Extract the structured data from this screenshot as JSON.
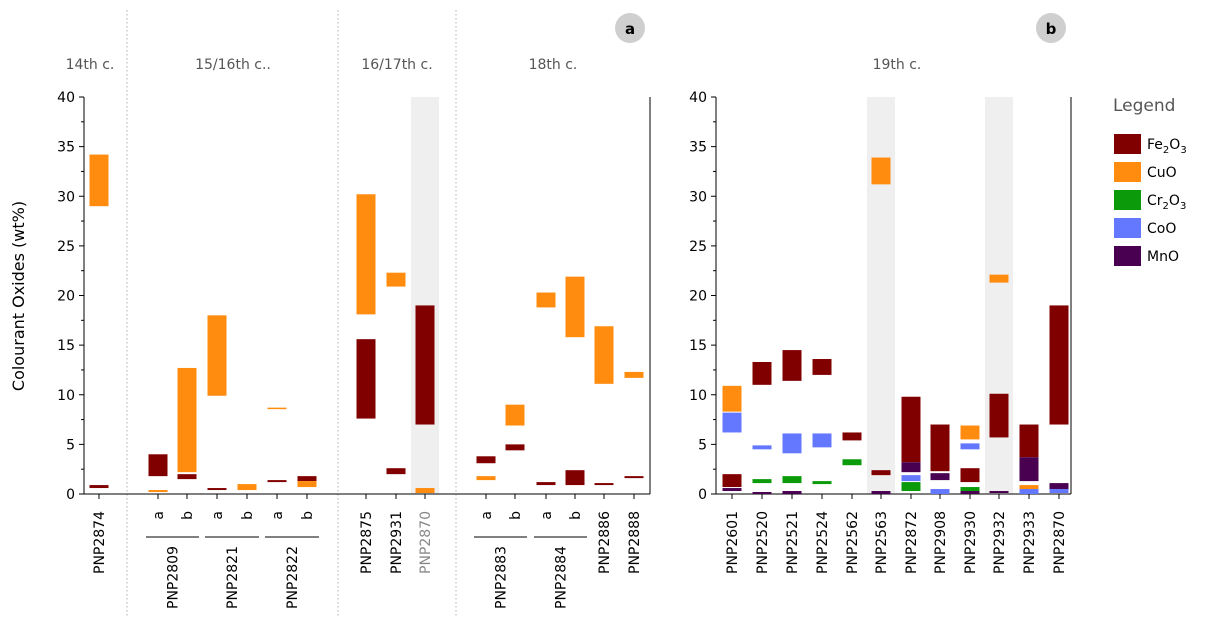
{
  "chart_data": [
    {
      "type": "bar",
      "subtype": "floating-range-bar",
      "panel": "a",
      "ylabel": "Colourant Oxides (wt%)",
      "ylim": [
        0,
        40
      ],
      "yticks": [
        0,
        5,
        10,
        15,
        20,
        25,
        30,
        35,
        40
      ],
      "periods": [
        {
          "label": "14th c.",
          "samples": [
            "PNP2874"
          ]
        },
        {
          "label": "15/16th c..",
          "samples": [
            "PNP2809",
            "PNP2821",
            "PNP2822"
          ]
        },
        {
          "label": "16/17th c.",
          "samples": [
            "PNP2875",
            "PNP2931",
            "PNP2870"
          ]
        },
        {
          "label": "18th c.",
          "samples": [
            "PNP2883",
            "PNP2884",
            "PNP2886",
            "PNP2888"
          ]
        }
      ],
      "slots": [
        {
          "sample": "PNP2874",
          "sub": ""
        },
        {
          "sample": "PNP2809",
          "sub": "a"
        },
        {
          "sample": "PNP2809",
          "sub": "b"
        },
        {
          "sample": "PNP2821",
          "sub": "a"
        },
        {
          "sample": "PNP2821",
          "sub": "b"
        },
        {
          "sample": "PNP2822",
          "sub": "a"
        },
        {
          "sample": "PNP2822",
          "sub": "b"
        },
        {
          "sample": "PNP2875",
          "sub": ""
        },
        {
          "sample": "PNP2931",
          "sub": ""
        },
        {
          "sample": "PNP2870",
          "sub": "",
          "muted": true,
          "highlight": true
        },
        {
          "sample": "PNP2883",
          "sub": "a"
        },
        {
          "sample": "PNP2883",
          "sub": "b"
        },
        {
          "sample": "PNP2884",
          "sub": "a"
        },
        {
          "sample": "PNP2884",
          "sub": "b"
        },
        {
          "sample": "PNP2886",
          "sub": ""
        },
        {
          "sample": "PNP2888",
          "sub": ""
        }
      ],
      "bars": [
        {
          "slot": 0,
          "oxide": "CuO",
          "low": 29.0,
          "high": 34.2
        },
        {
          "slot": 0,
          "oxide": "Fe2O3",
          "low": 0.6,
          "high": 0.9
        },
        {
          "slot": 1,
          "oxide": "Fe2O3",
          "low": 1.8,
          "high": 4.0
        },
        {
          "slot": 1,
          "oxide": "CuO",
          "low": 0.2,
          "high": 0.4
        },
        {
          "slot": 2,
          "oxide": "CuO",
          "low": 2.2,
          "high": 12.7
        },
        {
          "slot": 2,
          "oxide": "Fe2O3",
          "low": 1.5,
          "high": 2.0
        },
        {
          "slot": 3,
          "oxide": "CuO",
          "low": 9.9,
          "high": 18.0
        },
        {
          "slot": 3,
          "oxide": "Fe2O3",
          "low": 0.4,
          "high": 0.6
        },
        {
          "slot": 4,
          "oxide": "CuO",
          "low": 0.4,
          "high": 1.0
        },
        {
          "slot": 5,
          "oxide": "CuO",
          "low": 8.6,
          "high": 8.7
        },
        {
          "slot": 5,
          "oxide": "Fe2O3",
          "low": 1.2,
          "high": 1.4
        },
        {
          "slot": 6,
          "oxide": "Fe2O3",
          "low": 1.3,
          "high": 1.8
        },
        {
          "slot": 6,
          "oxide": "CuO",
          "low": 0.7,
          "high": 1.3
        },
        {
          "slot": 7,
          "oxide": "CuO",
          "low": 18.1,
          "high": 30.2
        },
        {
          "slot": 7,
          "oxide": "Fe2O3",
          "low": 7.6,
          "high": 15.6
        },
        {
          "slot": 8,
          "oxide": "CuO",
          "low": 20.9,
          "high": 22.3
        },
        {
          "slot": 8,
          "oxide": "Fe2O3",
          "low": 2.0,
          "high": 2.6
        },
        {
          "slot": 9,
          "oxide": "Fe2O3",
          "low": 7.0,
          "high": 19.0
        },
        {
          "slot": 9,
          "oxide": "CuO",
          "low": 0.1,
          "high": 0.6
        },
        {
          "slot": 10,
          "oxide": "Fe2O3",
          "low": 3.1,
          "high": 3.8
        },
        {
          "slot": 10,
          "oxide": "CuO",
          "low": 1.4,
          "high": 1.8
        },
        {
          "slot": 11,
          "oxide": "CuO",
          "low": 6.9,
          "high": 9.0
        },
        {
          "slot": 11,
          "oxide": "Fe2O3",
          "low": 4.4,
          "high": 5.0
        },
        {
          "slot": 12,
          "oxide": "CuO",
          "low": 18.8,
          "high": 20.3
        },
        {
          "slot": 12,
          "oxide": "Fe2O3",
          "low": 0.9,
          "high": 1.2
        },
        {
          "slot": 13,
          "oxide": "CuO",
          "low": 15.8,
          "high": 21.9
        },
        {
          "slot": 13,
          "oxide": "Fe2O3",
          "low": 0.9,
          "high": 2.4
        },
        {
          "slot": 14,
          "oxide": "CuO",
          "low": 11.1,
          "high": 16.9
        },
        {
          "slot": 14,
          "oxide": "Fe2O3",
          "low": 0.9,
          "high": 1.1
        },
        {
          "slot": 15,
          "oxide": "CuO",
          "low": 11.7,
          "high": 12.3
        },
        {
          "slot": 15,
          "oxide": "Fe2O3",
          "low": 1.6,
          "high": 1.8
        }
      ]
    },
    {
      "type": "bar",
      "subtype": "floating-range-bar",
      "panel": "b",
      "ylim": [
        0,
        40
      ],
      "yticks": [
        0,
        5,
        10,
        15,
        20,
        25,
        30,
        35,
        40
      ],
      "periods": [
        {
          "label": "19th c.",
          "samples": [
            "PNP2601",
            "PNP2520",
            "PNP2521",
            "PNP2524",
            "PNP2562",
            "PNP2563",
            "PNP2872",
            "PNP2908",
            "PNP2930",
            "PNP2932",
            "PNP2933",
            "PNP2870"
          ]
        }
      ],
      "slots": [
        {
          "sample": "PNP2601",
          "sub": ""
        },
        {
          "sample": "PNP2520",
          "sub": ""
        },
        {
          "sample": "PNP2521",
          "sub": ""
        },
        {
          "sample": "PNP2524",
          "sub": ""
        },
        {
          "sample": "PNP2562",
          "sub": ""
        },
        {
          "sample": "PNP2563",
          "sub": "",
          "highlight": true
        },
        {
          "sample": "PNP2872",
          "sub": ""
        },
        {
          "sample": "PNP2908",
          "sub": ""
        },
        {
          "sample": "PNP2930",
          "sub": ""
        },
        {
          "sample": "PNP2932",
          "sub": "",
          "highlight": true
        },
        {
          "sample": "PNP2933",
          "sub": ""
        },
        {
          "sample": "PNP2870",
          "sub": ""
        }
      ],
      "bars": [
        {
          "slot": 0,
          "oxide": "CuO",
          "low": 8.3,
          "high": 10.9
        },
        {
          "slot": 0,
          "oxide": "CoO",
          "low": 6.2,
          "high": 8.2
        },
        {
          "slot": 0,
          "oxide": "Fe2O3",
          "low": 0.7,
          "high": 2.0
        },
        {
          "slot": 0,
          "oxide": "MnO",
          "low": 0.3,
          "high": 0.6
        },
        {
          "slot": 1,
          "oxide": "Fe2O3",
          "low": 11.0,
          "high": 13.3
        },
        {
          "slot": 1,
          "oxide": "CoO",
          "low": 4.5,
          "high": 4.9
        },
        {
          "slot": 1,
          "oxide": "Cr2O3",
          "low": 1.1,
          "high": 1.5
        },
        {
          "slot": 1,
          "oxide": "MnO",
          "low": 0.0,
          "high": 0.2
        },
        {
          "slot": 2,
          "oxide": "Fe2O3",
          "low": 11.4,
          "high": 14.5
        },
        {
          "slot": 2,
          "oxide": "CoO",
          "low": 4.1,
          "high": 6.1
        },
        {
          "slot": 2,
          "oxide": "Cr2O3",
          "low": 1.1,
          "high": 1.8
        },
        {
          "slot": 2,
          "oxide": "MnO",
          "low": 0.0,
          "high": 0.3
        },
        {
          "slot": 3,
          "oxide": "Fe2O3",
          "low": 12.0,
          "high": 13.6
        },
        {
          "slot": 3,
          "oxide": "CoO",
          "low": 4.7,
          "high": 6.1
        },
        {
          "slot": 3,
          "oxide": "Cr2O3",
          "low": 1.0,
          "high": 1.3
        },
        {
          "slot": 4,
          "oxide": "Fe2O3",
          "low": 5.4,
          "high": 6.2
        },
        {
          "slot": 4,
          "oxide": "Cr2O3",
          "low": 2.9,
          "high": 3.5
        },
        {
          "slot": 5,
          "oxide": "CuO",
          "low": 31.2,
          "high": 33.9
        },
        {
          "slot": 5,
          "oxide": "Fe2O3",
          "low": 1.9,
          "high": 2.4
        },
        {
          "slot": 5,
          "oxide": "MnO",
          "low": 0.0,
          "high": 0.3
        },
        {
          "slot": 6,
          "oxide": "Fe2O3",
          "low": 3.2,
          "high": 9.8
        },
        {
          "slot": 6,
          "oxide": "MnO",
          "low": 2.2,
          "high": 3.2
        },
        {
          "slot": 6,
          "oxide": "CoO",
          "low": 1.3,
          "high": 1.9
        },
        {
          "slot": 6,
          "oxide": "Cr2O3",
          "low": 0.3,
          "high": 1.2
        },
        {
          "slot": 7,
          "oxide": "Fe2O3",
          "low": 2.3,
          "high": 7.0
        },
        {
          "slot": 7,
          "oxide": "MnO",
          "low": 1.4,
          "high": 2.1
        },
        {
          "slot": 7,
          "oxide": "CoO",
          "low": 0.0,
          "high": 0.5
        },
        {
          "slot": 8,
          "oxide": "CuO",
          "low": 5.5,
          "high": 6.9
        },
        {
          "slot": 8,
          "oxide": "CoO",
          "low": 4.5,
          "high": 5.1
        },
        {
          "slot": 8,
          "oxide": "Fe2O3",
          "low": 1.2,
          "high": 2.6
        },
        {
          "slot": 8,
          "oxide": "Cr2O3",
          "low": 0.3,
          "high": 0.7
        },
        {
          "slot": 8,
          "oxide": "MnO",
          "low": 0.0,
          "high": 0.3
        },
        {
          "slot": 9,
          "oxide": "CuO",
          "low": 21.3,
          "high": 22.1
        },
        {
          "slot": 9,
          "oxide": "Fe2O3",
          "low": 5.7,
          "high": 10.1
        },
        {
          "slot": 9,
          "oxide": "MnO",
          "low": 0.1,
          "high": 0.3
        },
        {
          "slot": 10,
          "oxide": "Fe2O3",
          "low": 3.7,
          "high": 7.0
        },
        {
          "slot": 10,
          "oxide": "MnO",
          "low": 1.3,
          "high": 3.7
        },
        {
          "slot": 10,
          "oxide": "CuO",
          "low": 0.5,
          "high": 0.9
        },
        {
          "slot": 10,
          "oxide": "CoO",
          "low": 0.0,
          "high": 0.5
        },
        {
          "slot": 11,
          "oxide": "Fe2O3",
          "low": 7.0,
          "high": 19.0
        },
        {
          "slot": 11,
          "oxide": "MnO",
          "low": 0.5,
          "high": 1.1
        },
        {
          "slot": 11,
          "oxide": "CoO",
          "low": 0.1,
          "high": 0.5
        }
      ]
    }
  ],
  "legend": {
    "title": "Legend",
    "items": [
      {
        "key": "Fe2O3",
        "base1": "Fe",
        "sub1": "2",
        "base2": "O",
        "sub2": "3",
        "color": "#800000"
      },
      {
        "key": "CuO",
        "base1": "CuO",
        "sub1": "",
        "base2": "",
        "sub2": "",
        "color": "#ff8c0f"
      },
      {
        "key": "Cr2O3",
        "base1": "Cr",
        "sub1": "2",
        "base2": "O",
        "sub2": "3",
        "color": "#0a9a0a"
      },
      {
        "key": "CoO",
        "base1": "CoO",
        "sub1": "",
        "base2": "",
        "sub2": "",
        "color": "#6478ff"
      },
      {
        "key": "MnO",
        "base1": "MnO",
        "sub1": "",
        "base2": "",
        "sub2": "",
        "color": "#4a0050"
      }
    ]
  },
  "badges": {
    "a": "a",
    "b": "b"
  }
}
